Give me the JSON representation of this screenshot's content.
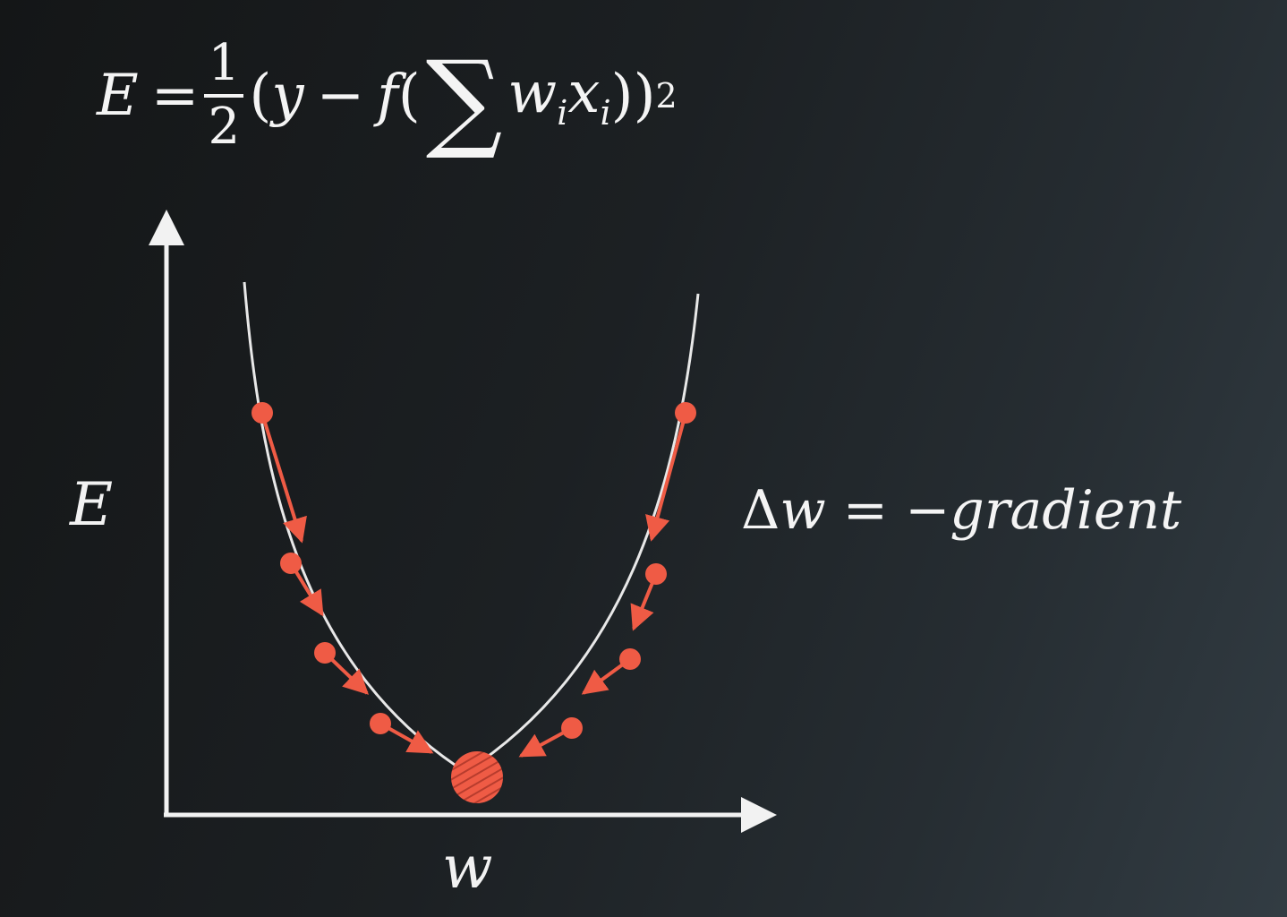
{
  "formula": {
    "lhs": "E",
    "equals": "=",
    "frac_num": "1",
    "frac_den": "2",
    "open_paren": "(",
    "y": "y",
    "minus": "−",
    "f": "f",
    "open_paren2": "(",
    "sum_symbol": "∑",
    "w": "w",
    "w_sub": "i",
    "x": "x",
    "x_sub": "i",
    "close_parens": "))",
    "power": "2"
  },
  "update_rule": {
    "delta": "Δ",
    "w": "w",
    "equals": "=",
    "rhs": "−gradient"
  },
  "axes": {
    "y_label": "E",
    "x_label": "w"
  },
  "colors": {
    "background": "#1c2023",
    "foreground": "#f2f2f2",
    "accent": "#ef5b45"
  },
  "icons": {
    "optimum_marker": "striped-circle-icon",
    "step_marker": "dot-icon",
    "step_arrow": "arrow-icon"
  }
}
